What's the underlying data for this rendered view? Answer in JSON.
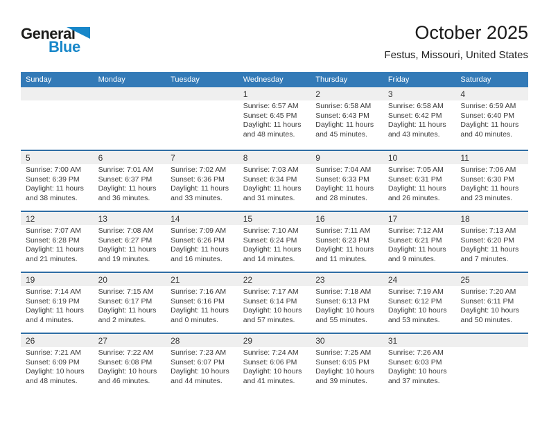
{
  "logo": {
    "word1": "General",
    "word2": "Blue"
  },
  "header": {
    "title": "October 2025",
    "subtitle": "Festus, Missouri, United States"
  },
  "weekdays": [
    "Sunday",
    "Monday",
    "Tuesday",
    "Wednesday",
    "Thursday",
    "Friday",
    "Saturday"
  ],
  "labels": {
    "sunrise": "Sunrise:",
    "sunset": "Sunset:",
    "daylight": "Daylight:"
  },
  "colors": {
    "header_bg": "#337ab7",
    "row_border": "#2e6da4",
    "band_bg": "#efefef",
    "logo_blue": "#1887c9"
  },
  "weeks": [
    [
      null,
      null,
      null,
      {
        "day": "1",
        "sunrise": "6:57 AM",
        "sunset": "6:45 PM",
        "daylight": "11 hours and 48 minutes."
      },
      {
        "day": "2",
        "sunrise": "6:58 AM",
        "sunset": "6:43 PM",
        "daylight": "11 hours and 45 minutes."
      },
      {
        "day": "3",
        "sunrise": "6:58 AM",
        "sunset": "6:42 PM",
        "daylight": "11 hours and 43 minutes."
      },
      {
        "day": "4",
        "sunrise": "6:59 AM",
        "sunset": "6:40 PM",
        "daylight": "11 hours and 40 minutes."
      }
    ],
    [
      {
        "day": "5",
        "sunrise": "7:00 AM",
        "sunset": "6:39 PM",
        "daylight": "11 hours and 38 minutes."
      },
      {
        "day": "6",
        "sunrise": "7:01 AM",
        "sunset": "6:37 PM",
        "daylight": "11 hours and 36 minutes."
      },
      {
        "day": "7",
        "sunrise": "7:02 AM",
        "sunset": "6:36 PM",
        "daylight": "11 hours and 33 minutes."
      },
      {
        "day": "8",
        "sunrise": "7:03 AM",
        "sunset": "6:34 PM",
        "daylight": "11 hours and 31 minutes."
      },
      {
        "day": "9",
        "sunrise": "7:04 AM",
        "sunset": "6:33 PM",
        "daylight": "11 hours and 28 minutes."
      },
      {
        "day": "10",
        "sunrise": "7:05 AM",
        "sunset": "6:31 PM",
        "daylight": "11 hours and 26 minutes."
      },
      {
        "day": "11",
        "sunrise": "7:06 AM",
        "sunset": "6:30 PM",
        "daylight": "11 hours and 23 minutes."
      }
    ],
    [
      {
        "day": "12",
        "sunrise": "7:07 AM",
        "sunset": "6:28 PM",
        "daylight": "11 hours and 21 minutes."
      },
      {
        "day": "13",
        "sunrise": "7:08 AM",
        "sunset": "6:27 PM",
        "daylight": "11 hours and 19 minutes."
      },
      {
        "day": "14",
        "sunrise": "7:09 AM",
        "sunset": "6:26 PM",
        "daylight": "11 hours and 16 minutes."
      },
      {
        "day": "15",
        "sunrise": "7:10 AM",
        "sunset": "6:24 PM",
        "daylight": "11 hours and 14 minutes."
      },
      {
        "day": "16",
        "sunrise": "7:11 AM",
        "sunset": "6:23 PM",
        "daylight": "11 hours and 11 minutes."
      },
      {
        "day": "17",
        "sunrise": "7:12 AM",
        "sunset": "6:21 PM",
        "daylight": "11 hours and 9 minutes."
      },
      {
        "day": "18",
        "sunrise": "7:13 AM",
        "sunset": "6:20 PM",
        "daylight": "11 hours and 7 minutes."
      }
    ],
    [
      {
        "day": "19",
        "sunrise": "7:14 AM",
        "sunset": "6:19 PM",
        "daylight": "11 hours and 4 minutes."
      },
      {
        "day": "20",
        "sunrise": "7:15 AM",
        "sunset": "6:17 PM",
        "daylight": "11 hours and 2 minutes."
      },
      {
        "day": "21",
        "sunrise": "7:16 AM",
        "sunset": "6:16 PM",
        "daylight": "11 hours and 0 minutes."
      },
      {
        "day": "22",
        "sunrise": "7:17 AM",
        "sunset": "6:14 PM",
        "daylight": "10 hours and 57 minutes."
      },
      {
        "day": "23",
        "sunrise": "7:18 AM",
        "sunset": "6:13 PM",
        "daylight": "10 hours and 55 minutes."
      },
      {
        "day": "24",
        "sunrise": "7:19 AM",
        "sunset": "6:12 PM",
        "daylight": "10 hours and 53 minutes."
      },
      {
        "day": "25",
        "sunrise": "7:20 AM",
        "sunset": "6:11 PM",
        "daylight": "10 hours and 50 minutes."
      }
    ],
    [
      {
        "day": "26",
        "sunrise": "7:21 AM",
        "sunset": "6:09 PM",
        "daylight": "10 hours and 48 minutes."
      },
      {
        "day": "27",
        "sunrise": "7:22 AM",
        "sunset": "6:08 PM",
        "daylight": "10 hours and 46 minutes."
      },
      {
        "day": "28",
        "sunrise": "7:23 AM",
        "sunset": "6:07 PM",
        "daylight": "10 hours and 44 minutes."
      },
      {
        "day": "29",
        "sunrise": "7:24 AM",
        "sunset": "6:06 PM",
        "daylight": "10 hours and 41 minutes."
      },
      {
        "day": "30",
        "sunrise": "7:25 AM",
        "sunset": "6:05 PM",
        "daylight": "10 hours and 39 minutes."
      },
      {
        "day": "31",
        "sunrise": "7:26 AM",
        "sunset": "6:03 PM",
        "daylight": "10 hours and 37 minutes."
      },
      null
    ]
  ]
}
